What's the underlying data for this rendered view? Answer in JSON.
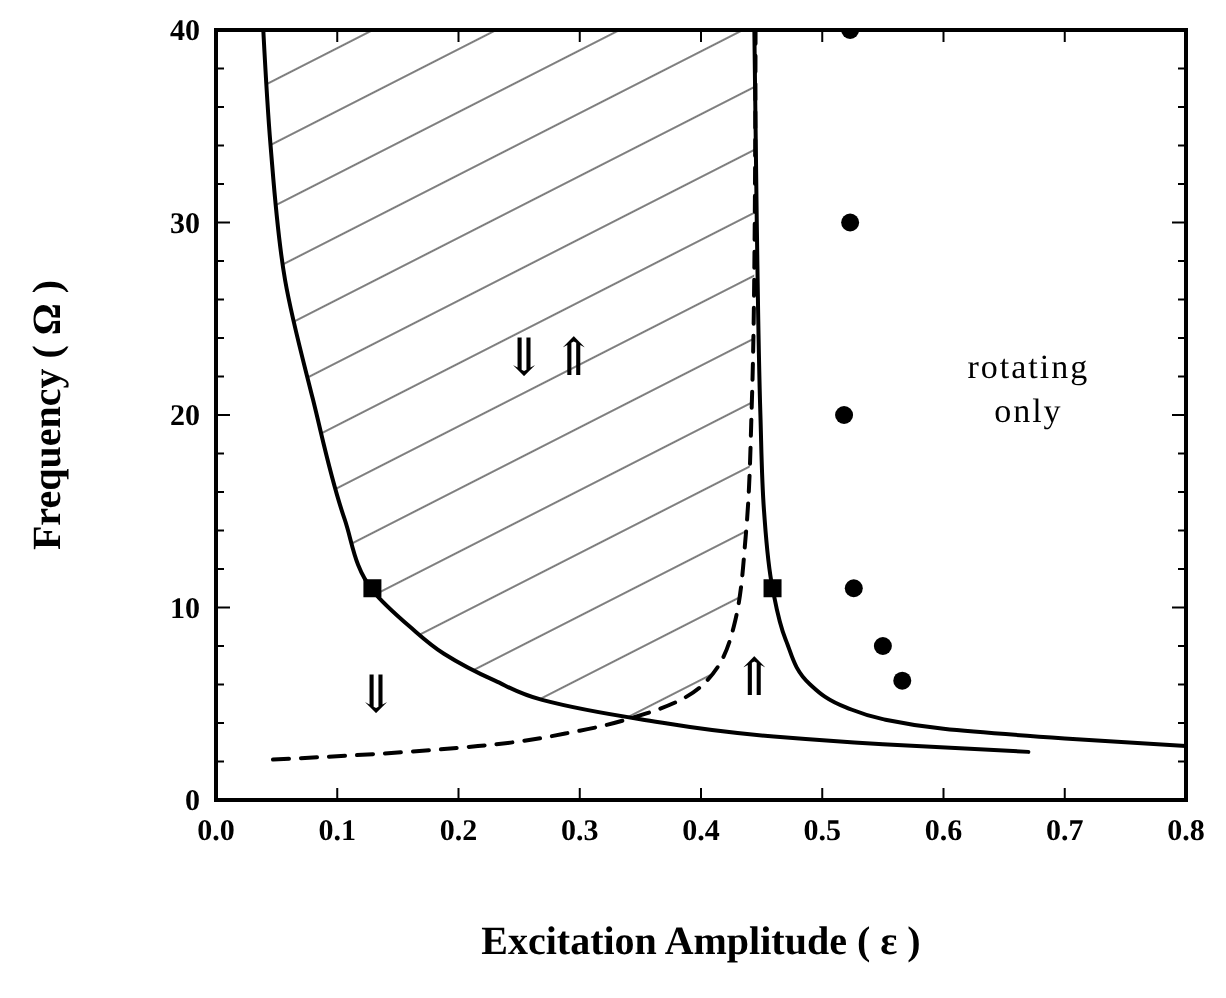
{
  "chart_data": {
    "type": "line",
    "xlabel": "Excitation Amplitude ( ε )",
    "ylabel": "Frequency ( Ω )",
    "xlim": [
      0,
      0.8
    ],
    "ylim": [
      0,
      40
    ],
    "xticks": [
      {
        "value": 0,
        "label": "0.0"
      },
      0.1,
      0.2,
      0.3,
      0.4,
      0.5,
      0.6,
      0.7,
      0.8
    ],
    "yticks": [
      0,
      {
        "value": 2,
        "label": null
      },
      {
        "value": 4,
        "label": null
      },
      {
        "value": 6,
        "label": null
      },
      {
        "value": 8,
        "label": null
      },
      10,
      {
        "value": 12,
        "label": null
      },
      {
        "value": 14,
        "label": null
      },
      {
        "value": 16,
        "label": null
      },
      {
        "value": 18,
        "label": null
      },
      20,
      {
        "value": 22,
        "label": null
      },
      {
        "value": 24,
        "label": null
      },
      {
        "value": 26,
        "label": null
      },
      {
        "value": 28,
        "label": null
      },
      30,
      {
        "value": 32,
        "label": null
      },
      {
        "value": 34,
        "label": null
      },
      {
        "value": 36,
        "label": null
      },
      {
        "value": 38,
        "label": null
      },
      40
    ],
    "grid": false,
    "series": [
      {
        "color": "#000000",
        "line_style": "solid",
        "x": [
          0.039,
          0.045,
          0.057,
          0.08,
          0.106,
          0.129,
          0.16,
          0.188,
          0.23,
          0.269,
          0.35,
          0.46,
          0.55,
          0.67
        ],
        "values": [
          40,
          34,
          27,
          20.8,
          14.6,
          10.9,
          9,
          7.6,
          6.2,
          5.2,
          4.2,
          3.3,
          2.9,
          2.5
        ]
      },
      {
        "color": "#000000",
        "line_style": "solid",
        "x": [
          0.444,
          0.446,
          0.449,
          0.452,
          0.459,
          0.47,
          0.49,
          0.52,
          0.55,
          0.6,
          0.7,
          0.8
        ],
        "values": [
          40,
          30,
          20,
          15,
          11,
          8.3,
          6,
          4.8,
          4.2,
          3.7,
          3.2,
          2.8
        ]
      },
      {
        "color": "#000000",
        "line_style": "dashed",
        "x": [
          0.047,
          0.134,
          0.216,
          0.3,
          0.355,
          0.4,
          0.427,
          0.437,
          0.442,
          0.444,
          0.445
        ],
        "values": [
          2.1,
          2.4,
          2.8,
          3.6,
          4.5,
          5.9,
          9,
          13.8,
          20.8,
          27.7,
          40
        ]
      },
      {
        "type": "scatter",
        "color": "#000000",
        "marker": "circle",
        "x": [
          0.523,
          0.523,
          0.518,
          0.526,
          0.55,
          0.566
        ],
        "values": [
          40,
          30,
          20,
          11,
          8,
          6.2
        ]
      },
      {
        "type": "scatter",
        "color": "#000000",
        "marker": "square",
        "x": [
          0.129,
          0.459
        ],
        "values": [
          11,
          11
        ]
      }
    ],
    "annotations": [
      "⇓",
      "⇑",
      "⇓",
      "⇑",
      "rotating only"
    ]
  }
}
